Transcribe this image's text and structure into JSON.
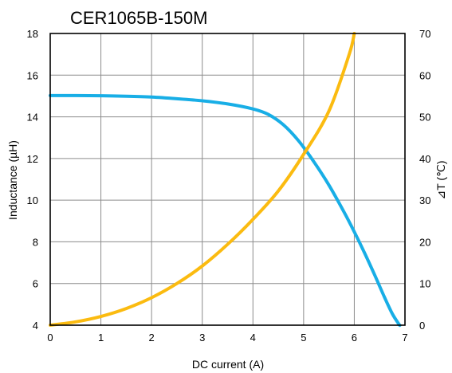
{
  "chart_data": {
    "type": "line",
    "title": "CER1065B-150M",
    "xlabel": "DC current (A)",
    "ylabel_left": "Inductance (µH)",
    "ylabel_right": "⊿T (℃)",
    "x_ticks": [
      0,
      1,
      2,
      3,
      4,
      5,
      6,
      7
    ],
    "y_left_ticks": [
      4,
      6,
      8,
      10,
      12,
      14,
      16,
      18
    ],
    "y_right_ticks": [
      0,
      10,
      20,
      30,
      40,
      50,
      60,
      70
    ],
    "xlim": [
      0,
      7
    ],
    "ylim_left": [
      4,
      18
    ],
    "ylim_right": [
      0,
      70
    ],
    "grid": true,
    "series": [
      {
        "axis": "left",
        "color": "#18aee6",
        "points": [
          [
            0,
            15.02
          ],
          [
            0.5,
            15.02
          ],
          [
            1.0,
            15.01
          ],
          [
            1.5,
            14.99
          ],
          [
            2.0,
            14.95
          ],
          [
            2.5,
            14.87
          ],
          [
            3.0,
            14.77
          ],
          [
            3.5,
            14.62
          ],
          [
            4.0,
            14.38
          ],
          [
            4.3,
            14.12
          ],
          [
            4.6,
            13.62
          ],
          [
            4.9,
            12.85
          ],
          [
            5.2,
            11.85
          ],
          [
            5.5,
            10.72
          ],
          [
            5.8,
            9.42
          ],
          [
            6.0,
            8.48
          ],
          [
            6.2,
            7.48
          ],
          [
            6.4,
            6.42
          ],
          [
            6.6,
            5.32
          ],
          [
            6.75,
            4.55
          ],
          [
            6.88,
            4.05
          ],
          [
            6.9,
            4.0
          ]
        ]
      },
      {
        "axis": "right",
        "color": "#fbbb10",
        "points": [
          [
            0,
            0.0
          ],
          [
            0.5,
            0.8
          ],
          [
            1.0,
            2.1
          ],
          [
            1.5,
            4.0
          ],
          [
            2.0,
            6.6
          ],
          [
            2.5,
            10.0
          ],
          [
            3.0,
            14.2
          ],
          [
            3.5,
            19.4
          ],
          [
            4.0,
            25.4
          ],
          [
            4.5,
            32.2
          ],
          [
            5.0,
            41.0
          ],
          [
            5.5,
            51.4
          ],
          [
            5.9,
            65.0
          ],
          [
            6.0,
            70.0
          ]
        ]
      }
    ]
  }
}
